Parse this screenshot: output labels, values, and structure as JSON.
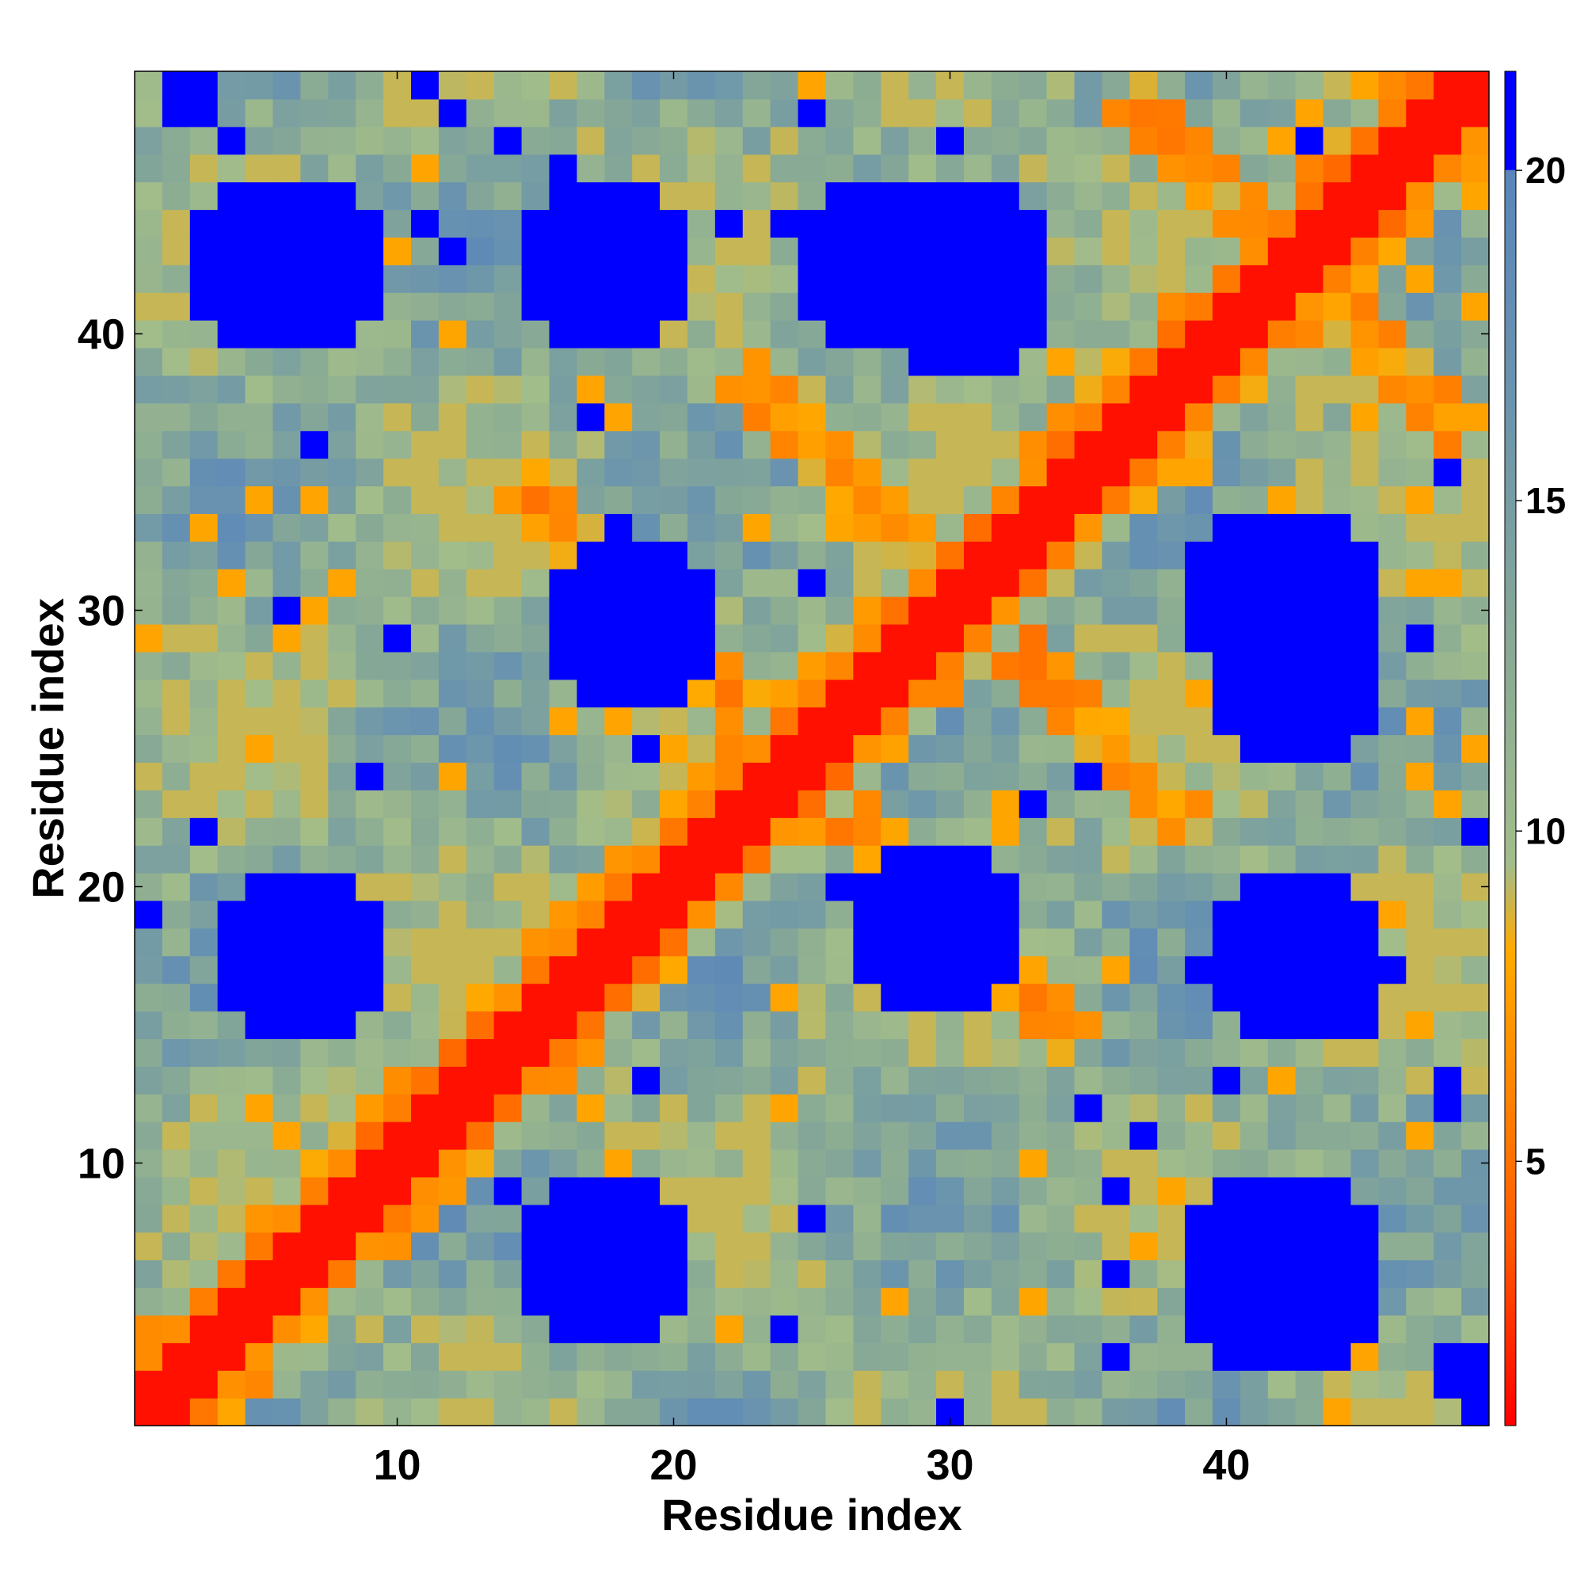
{
  "chart_data": {
    "type": "heatmap",
    "title": "",
    "xlabel": "Residue index",
    "ylabel": "Residue index",
    "x_range": [
      0.5,
      49.5
    ],
    "y_range": [
      0.5,
      49.5
    ],
    "x_ticks": [
      10,
      20,
      30,
      40
    ],
    "y_ticks": [
      10,
      20,
      30,
      40
    ],
    "colorbar": {
      "ticks": [
        5,
        10,
        15,
        20
      ],
      "range": [
        1,
        21.5
      ],
      "stops": [
        {
          "value": 1,
          "color": "#ff0000"
        },
        {
          "value": 3.8,
          "color": "#ff5a00"
        },
        {
          "value": 6.5,
          "color": "#ff8c00"
        },
        {
          "value": 8.2,
          "color": "#ffaa00"
        },
        {
          "value": 9.5,
          "color": "#a2bd8a"
        },
        {
          "value": 13,
          "color": "#86a896"
        },
        {
          "value": 16.5,
          "color": "#6a94ae"
        },
        {
          "value": 20,
          "color": "#5a85bb"
        },
        {
          "value": 20.01,
          "color": "#0000ff"
        },
        {
          "value": 21.5,
          "color": "#0000ff"
        }
      ]
    },
    "n": 49,
    "features": {
      "diagonal_band_width": 1.8,
      "blue_blocks": [
        {
          "x": [
            16,
            19
          ],
          "y": [
            5,
            8
          ],
          "r": 1.9
        },
        {
          "x": [
            16,
            19
          ],
          "y": [
            41,
            44
          ],
          "r": 1.9
        },
        {
          "x": [
            5,
            8
          ],
          "y": [
            16,
            19
          ],
          "r": 1.9
        },
        {
          "x": [
            41,
            44
          ],
          "y": [
            16,
            19
          ],
          "r": 1.9
        },
        {
          "x": [
            41,
            44
          ],
          "y": [
            4,
            8
          ],
          "r": 1.9
        },
        {
          "x": [
            4,
            8
          ],
          "y": [
            41,
            44
          ],
          "r": 1.9
        },
        {
          "x": [
            17,
            20
          ],
          "y": [
            28,
            31
          ],
          "r": 1.9
        },
        {
          "x": [
            28,
            31
          ],
          "y": [
            17,
            20
          ],
          "r": 1.9
        },
        {
          "x": [
            29,
            32
          ],
          "y": [
            40,
            44
          ],
          "r": 1.9
        },
        {
          "x": [
            40,
            44
          ],
          "y": [
            29,
            32
          ],
          "r": 1.9
        },
        {
          "x": [
            41,
            44
          ],
          "y": [
            26,
            31
          ],
          "r": 1.9
        },
        {
          "x": [
            26,
            31
          ],
          "y": [
            41,
            44
          ],
          "r": 1.9
        },
        {
          "x": [
            40,
            44
          ],
          "y": [
            4,
            8
          ],
          "r": 1.9
        },
        {
          "x": [
            2,
            3
          ],
          "y": [
            48,
            49
          ],
          "r": 0.8
        },
        {
          "x": [
            48,
            49
          ],
          "y": [
            2,
            3
          ],
          "r": 0.8
        }
      ],
      "orange_antidiagonals": [
        {
          "center_sum": 49,
          "length": 10
        },
        {
          "center_sum": 61,
          "length": 8
        },
        {
          "center_sum": 85,
          "length": 6
        }
      ]
    }
  }
}
